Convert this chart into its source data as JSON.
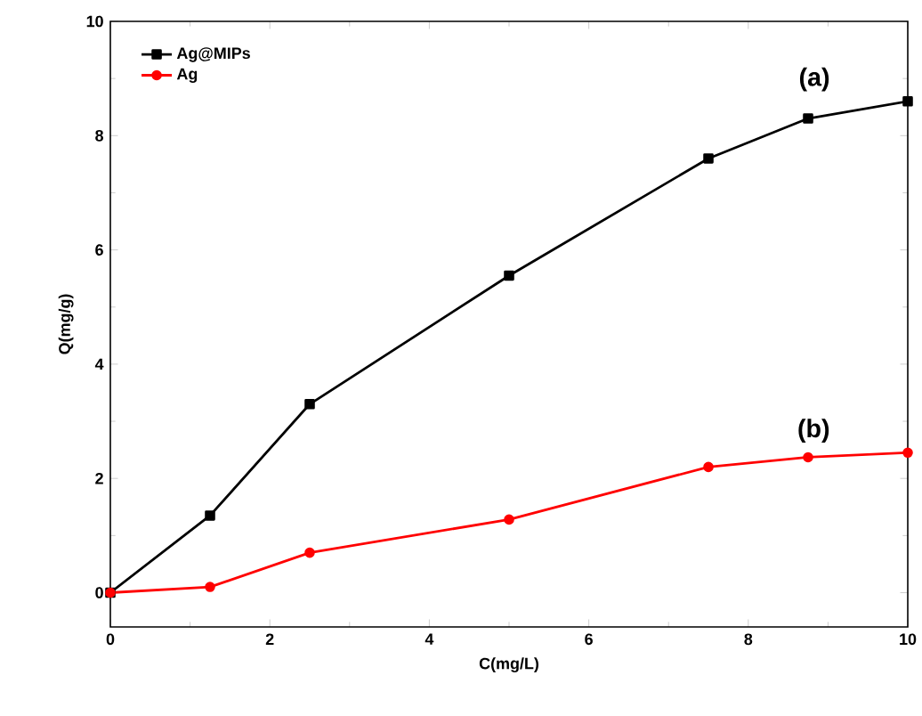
{
  "chart_data": {
    "type": "line",
    "xlabel": "C(mg/L)",
    "ylabel": "Q(mg/g)",
    "xlim": [
      0,
      10
    ],
    "ylim": [
      -0.6,
      10
    ],
    "xticks": [
      0,
      2,
      4,
      6,
      8,
      10
    ],
    "yticks": [
      0,
      2,
      4,
      6,
      8,
      10
    ],
    "legend": "top left",
    "grid": false,
    "series": [
      {
        "name": "Ag@MIPs",
        "color": "#000000",
        "marker": "square",
        "x": [
          0,
          1.25,
          2.5,
          5,
          7.5,
          8.75,
          10
        ],
        "values": [
          0,
          1.35,
          3.3,
          5.55,
          7.6,
          8.3,
          8.6
        ]
      },
      {
        "name": "Ag",
        "color": "#ff0000",
        "marker": "circle",
        "x": [
          0,
          1.25,
          2.5,
          5,
          7.5,
          8.75,
          10
        ],
        "values": [
          0,
          0.1,
          0.7,
          1.28,
          2.2,
          2.37,
          2.45
        ]
      }
    ],
    "annotations": [
      "(a)",
      "(b)"
    ]
  }
}
